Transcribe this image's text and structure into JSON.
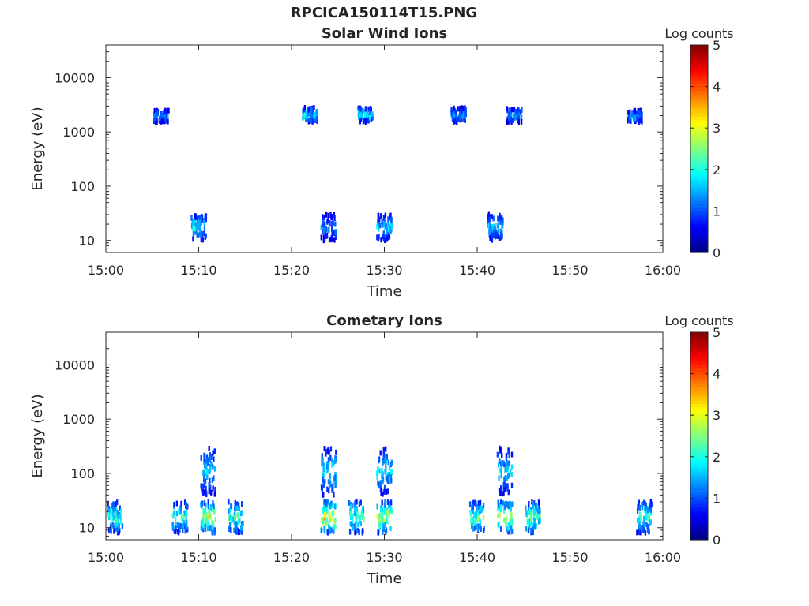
{
  "figure": {
    "title": "RPCICA150114T15.PNG"
  },
  "chart_data": [
    {
      "type": "heatmap",
      "title": "Solar Wind Ions",
      "xlabel": "Time",
      "ylabel": "Energy (eV)",
      "x_ticks": [
        "15:00",
        "15:10",
        "15:20",
        "15:30",
        "15:40",
        "15:50",
        "16:00"
      ],
      "xlim": [
        "15:00",
        "16:00"
      ],
      "y_scale": "log",
      "y_ticks": [
        "10",
        "100",
        "1000",
        "10000"
      ],
      "ylim": [
        6,
        40000
      ],
      "colorbar": {
        "label": "Log counts",
        "range": [
          0,
          5
        ],
        "ticks": [
          "0",
          "1",
          "2",
          "3",
          "4",
          "5"
        ],
        "colormap": "jet"
      },
      "clusters": [
        {
          "time": "15:10",
          "energy_range": [
            10,
            30
          ],
          "peak_log_counts": 2.2
        },
        {
          "time": "15:24",
          "energy_range": [
            10,
            30
          ],
          "peak_log_counts": 1.6
        },
        {
          "time": "15:30",
          "energy_range": [
            10,
            30
          ],
          "peak_log_counts": 2.0
        },
        {
          "time": "15:42",
          "energy_range": [
            10,
            30
          ],
          "peak_log_counts": 2.0
        },
        {
          "time": "15:06",
          "energy_range": [
            1500,
            2500
          ],
          "peak_log_counts": 1.6
        },
        {
          "time": "15:22",
          "energy_range": [
            1500,
            2800
          ],
          "peak_log_counts": 2.2
        },
        {
          "time": "15:28",
          "energy_range": [
            1500,
            2800
          ],
          "peak_log_counts": 2.2
        },
        {
          "time": "15:38",
          "energy_range": [
            1500,
            2800
          ],
          "peak_log_counts": 1.9
        },
        {
          "time": "15:44",
          "energy_range": [
            1500,
            2800
          ],
          "peak_log_counts": 1.8
        },
        {
          "time": "15:57",
          "energy_range": [
            1500,
            2500
          ],
          "peak_log_counts": 1.8
        }
      ]
    },
    {
      "type": "heatmap",
      "title": "Cometary Ions",
      "xlabel": "Time",
      "ylabel": "Energy (eV)",
      "x_ticks": [
        "15:00",
        "15:10",
        "15:20",
        "15:30",
        "15:40",
        "15:50",
        "16:00"
      ],
      "xlim": [
        "15:00",
        "16:00"
      ],
      "y_scale": "log",
      "y_ticks": [
        "10",
        "100",
        "1000",
        "10000"
      ],
      "ylim": [
        6,
        40000
      ],
      "colorbar": {
        "label": "Log counts",
        "range": [
          0,
          5
        ],
        "ticks": [
          "0",
          "1",
          "2",
          "3",
          "4",
          "5"
        ],
        "colormap": "jet"
      },
      "clusters": [
        {
          "time": "15:01",
          "energy_range": [
            8,
            30
          ],
          "peak_log_counts": 2.6
        },
        {
          "time": "15:08",
          "energy_range": [
            8,
            30
          ],
          "peak_log_counts": 2.6
        },
        {
          "time": "15:11",
          "energy_range": [
            8,
            30
          ],
          "peak_log_counts": 3.4
        },
        {
          "time": "15:14",
          "energy_range": [
            8,
            30
          ],
          "peak_log_counts": 2.7
        },
        {
          "time": "15:24",
          "energy_range": [
            8,
            30
          ],
          "peak_log_counts": 3.8
        },
        {
          "time": "15:27",
          "energy_range": [
            8,
            30
          ],
          "peak_log_counts": 2.9
        },
        {
          "time": "15:30",
          "energy_range": [
            8,
            30
          ],
          "peak_log_counts": 3.6
        },
        {
          "time": "15:40",
          "energy_range": [
            8,
            30
          ],
          "peak_log_counts": 2.9
        },
        {
          "time": "15:43",
          "energy_range": [
            8,
            30
          ],
          "peak_log_counts": 3.6
        },
        {
          "time": "15:46",
          "energy_range": [
            8,
            30
          ],
          "peak_log_counts": 2.8
        },
        {
          "time": "15:58",
          "energy_range": [
            8,
            30
          ],
          "peak_log_counts": 2.5
        },
        {
          "time": "15:11",
          "energy_range": [
            40,
            300
          ],
          "peak_log_counts": 2.0
        },
        {
          "time": "15:24",
          "energy_range": [
            40,
            300
          ],
          "peak_log_counts": 2.2
        },
        {
          "time": "15:30",
          "energy_range": [
            40,
            300
          ],
          "peak_log_counts": 2.2
        },
        {
          "time": "15:43",
          "energy_range": [
            40,
            300
          ],
          "peak_log_counts": 2.0
        }
      ]
    }
  ]
}
